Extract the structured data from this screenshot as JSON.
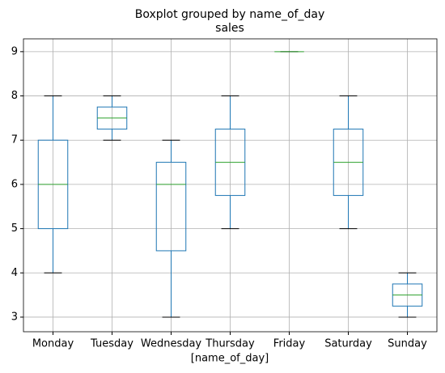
{
  "chart_data": {
    "type": "box",
    "suptitle": "Boxplot grouped by name_of_day",
    "title": "sales",
    "x_label": "[name_of_day]",
    "categories": [
      "Monday",
      "Tuesday",
      "Wednesday",
      "Thursday",
      "Friday",
      "Saturday",
      "Sunday"
    ],
    "min": [
      4,
      7,
      3,
      5,
      9,
      5,
      3
    ],
    "q1": [
      5,
      7.25,
      4.5,
      5.75,
      9,
      5.75,
      3.25
    ],
    "median": [
      6,
      7.5,
      6,
      6.5,
      9,
      6.5,
      3.5
    ],
    "q3": [
      7,
      7.75,
      6.5,
      7.25,
      9,
      7.25,
      3.75
    ],
    "max": [
      8,
      8,
      7,
      8,
      9,
      8,
      4
    ],
    "box_color": "#1f77b4",
    "median_color": "#2ca02c",
    "whisker_color": "#000000",
    "ylim": [
      2.67,
      9.29
    ],
    "yticks": [
      3,
      4,
      5,
      6,
      7,
      8,
      9
    ],
    "grid": true
  }
}
